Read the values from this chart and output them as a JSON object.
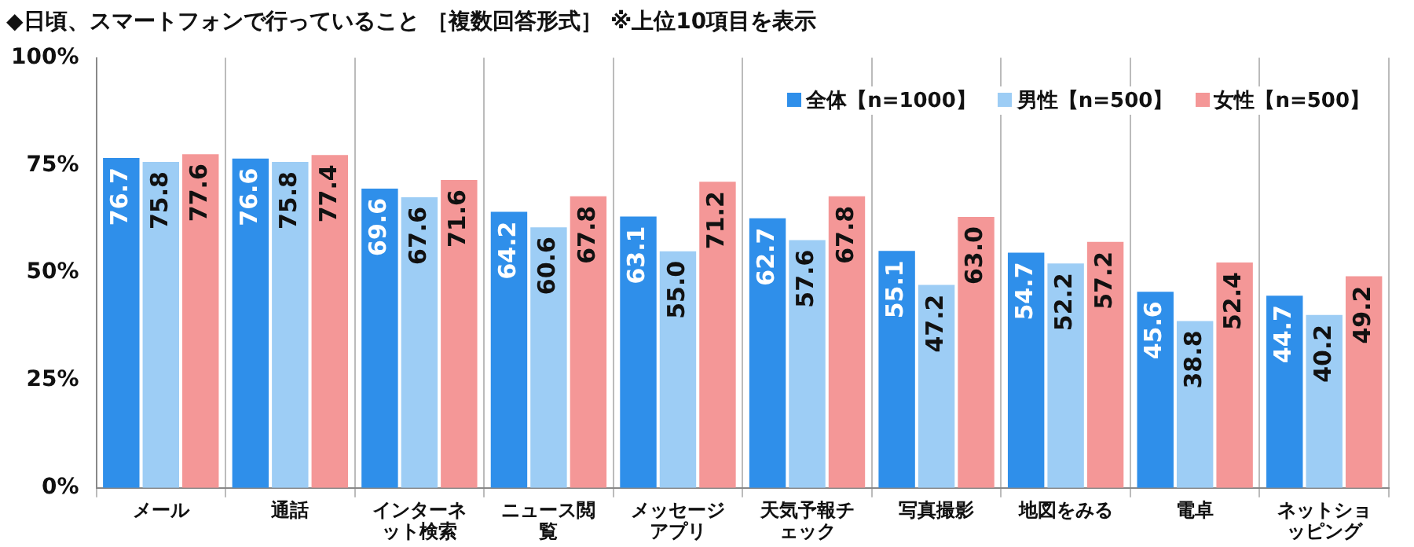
{
  "chart_data": {
    "type": "bar",
    "title": "◆日頃、スマートフォンで行っていること ［複数回答形式］ ※上位10項目を表示",
    "categories": [
      "メール",
      "通話",
      "インターネット検索",
      "ニュース閲覧",
      "メッセージアプリ",
      "天気予報チェック",
      "写真撮影",
      "地図をみる",
      "電卓",
      "ネットショッピング"
    ],
    "series": [
      {
        "name": "全体【n=1000】",
        "color": "#2f8fea",
        "values": [
          76.7,
          76.6,
          69.6,
          64.2,
          63.1,
          62.7,
          55.1,
          54.7,
          45.6,
          44.7
        ],
        "value_labels": [
          "76.7",
          "76.6",
          "69.6",
          "64.2",
          "63.1",
          "62.7",
          "55.1",
          "54.7",
          "45.6",
          "44.7"
        ]
      },
      {
        "name": "男性【n=500】",
        "color": "#9dcdf5",
        "values": [
          75.8,
          75.8,
          67.6,
          60.6,
          55.0,
          57.6,
          47.2,
          52.2,
          38.8,
          40.2
        ],
        "value_labels": [
          "75.8",
          "75.8",
          "67.6",
          "60.6",
          "55.0",
          "57.6",
          "47.2",
          "52.2",
          "38.8",
          "40.2"
        ]
      },
      {
        "name": "女性【n=500】",
        "color": "#f49797",
        "values": [
          77.6,
          77.4,
          71.6,
          67.8,
          71.2,
          67.8,
          63.0,
          57.2,
          52.4,
          49.2
        ],
        "value_labels": [
          "77.6",
          "77.4",
          "71.6",
          "67.8",
          "71.2",
          "67.8",
          "63.0",
          "57.2",
          "52.4",
          "49.2"
        ]
      }
    ],
    "ylim": [
      0,
      100
    ],
    "yticks": [
      {
        "value": 0,
        "label": "0%"
      },
      {
        "value": 25,
        "label": "25%"
      },
      {
        "value": 50,
        "label": "50%"
      },
      {
        "value": 75,
        "label": "75%"
      },
      {
        "value": 100,
        "label": "100%"
      }
    ],
    "grid": "x",
    "legend": "top right"
  }
}
